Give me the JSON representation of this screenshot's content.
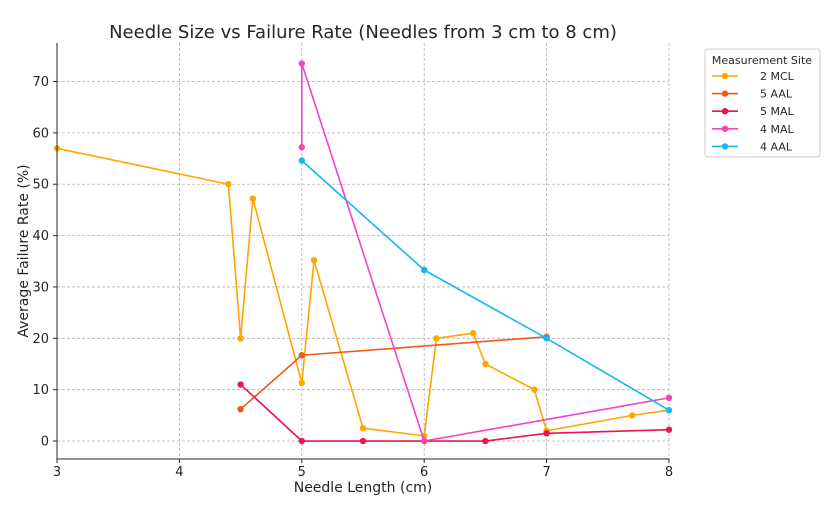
{
  "chart_data": {
    "type": "line",
    "title": "Needle Size vs Failure Rate (Needles from 3 cm to 8 cm)",
    "xlabel": "Needle Length (cm)",
    "ylabel": "Average Failure Rate (%)",
    "xlim": [
      3,
      8
    ],
    "ylim": [
      -3.5,
      77.5
    ],
    "xticks": [
      3,
      4,
      5,
      6,
      7,
      8
    ],
    "yticks": [
      0,
      10,
      20,
      30,
      40,
      50,
      60,
      70
    ],
    "grid": true,
    "legend": {
      "title": "Measurement Site",
      "placement": "outside-top-right"
    },
    "series": [
      {
        "name": "2 MCL",
        "color": "#FFA500",
        "points": [
          [
            3,
            57
          ],
          [
            4.4,
            50
          ],
          [
            4.5,
            20
          ],
          [
            4.6,
            47.2
          ],
          [
            5,
            11.3
          ],
          [
            5.1,
            35.2
          ],
          [
            5.5,
            2.5
          ],
          [
            6,
            1
          ],
          [
            6.1,
            20
          ],
          [
            6.4,
            21
          ],
          [
            6.5,
            15
          ],
          [
            6.9,
            10
          ],
          [
            7,
            2
          ],
          [
            7.7,
            5
          ],
          [
            8,
            6
          ]
        ]
      },
      {
        "name": "5 AAL",
        "color": "#F05A19",
        "points": [
          [
            4.5,
            6.2
          ],
          [
            5,
            16.7
          ],
          [
            7,
            20.3
          ]
        ]
      },
      {
        "name": "5 MAL",
        "color": "#EB144C",
        "points": [
          [
            4.5,
            11
          ],
          [
            5,
            0
          ],
          [
            5.5,
            0
          ],
          [
            6,
            0
          ],
          [
            6.5,
            0
          ],
          [
            7,
            1.5
          ],
          [
            8,
            2.2
          ]
        ]
      },
      {
        "name": "4 MAL",
        "color": "#F045C0",
        "points": [
          [
            5,
            57.2
          ],
          [
            5,
            73.5
          ],
          [
            6,
            0
          ],
          [
            8,
            8.4
          ]
        ]
      },
      {
        "name": "4 AAL",
        "color": "#13B9F0",
        "points": [
          [
            5,
            54.6
          ],
          [
            6,
            33.3
          ],
          [
            7,
            20
          ],
          [
            8,
            6
          ]
        ]
      }
    ]
  }
}
